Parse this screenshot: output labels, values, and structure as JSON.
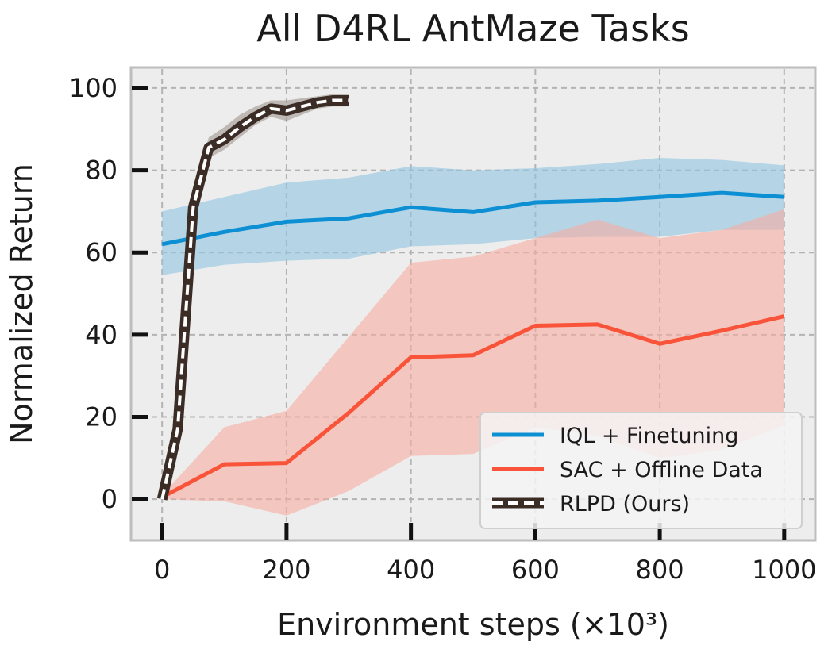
{
  "chart_data": {
    "type": "line",
    "title": "All D4RL AntMaze Tasks",
    "xlabel": "Environment steps (×10³)",
    "ylabel": "Normalized Return",
    "xlim": [
      -50,
      1050
    ],
    "ylim": [
      -10,
      105
    ],
    "xticks": [
      0,
      200,
      400,
      600,
      800,
      1000
    ],
    "yticks": [
      0,
      20,
      40,
      60,
      80,
      100
    ],
    "grid": true,
    "legend_position": "bottom-right",
    "series": [
      {
        "name": "IQL + Finetuning",
        "color": "#0d8fd4",
        "band_color": "#8fc4e3",
        "x": [
          0,
          100,
          200,
          300,
          400,
          500,
          600,
          700,
          800,
          900,
          1000
        ],
        "y": [
          62,
          65,
          67.5,
          68.3,
          71,
          69.8,
          72.2,
          72.6,
          73.5,
          74.5,
          73.5
        ],
        "lower": [
          54.5,
          57,
          58,
          58.5,
          61.5,
          62,
          63.5,
          63.8,
          63.8,
          65.5,
          65.5
        ],
        "upper": [
          70,
          73.5,
          77,
          78.2,
          81,
          80,
          80.5,
          81.5,
          83,
          82.5,
          81.2
        ]
      },
      {
        "name": "SAC + Offline Data",
        "color": "#f9533a",
        "band_color": "#f6aba0",
        "x": [
          0,
          100,
          200,
          300,
          400,
          500,
          600,
          700,
          800,
          900,
          1000
        ],
        "y": [
          0.5,
          8.5,
          8.8,
          21,
          34.5,
          35,
          42.2,
          42.5,
          37.8,
          41,
          44.5
        ],
        "lower": [
          0,
          -0.5,
          -4,
          2,
          10.5,
          11,
          17.5,
          15.5,
          10,
          12,
          18
        ],
        "upper": [
          1,
          17.5,
          21.5,
          39.5,
          57.5,
          59,
          63.5,
          68,
          63.5,
          65.5,
          70.5
        ]
      },
      {
        "name": "RLPD (Ours)",
        "color": "#3b2d26",
        "band_color": "#9e9690",
        "x": [
          0,
          25,
          50,
          75,
          100,
          125,
          150,
          175,
          200,
          225,
          250,
          275,
          300
        ],
        "y": [
          0,
          17,
          71,
          85.5,
          87.5,
          90.5,
          93,
          95,
          94.5,
          95.5,
          96.5,
          97,
          97
        ],
        "lower": [
          0,
          15.5,
          68,
          83,
          85,
          88,
          91,
          93,
          92,
          93.5,
          95,
          95.5,
          95.5
        ],
        "upper": [
          0,
          19,
          74,
          88,
          90.5,
          93.5,
          95.5,
          97,
          97,
          97.5,
          98,
          98.5,
          98.5
        ]
      }
    ]
  }
}
